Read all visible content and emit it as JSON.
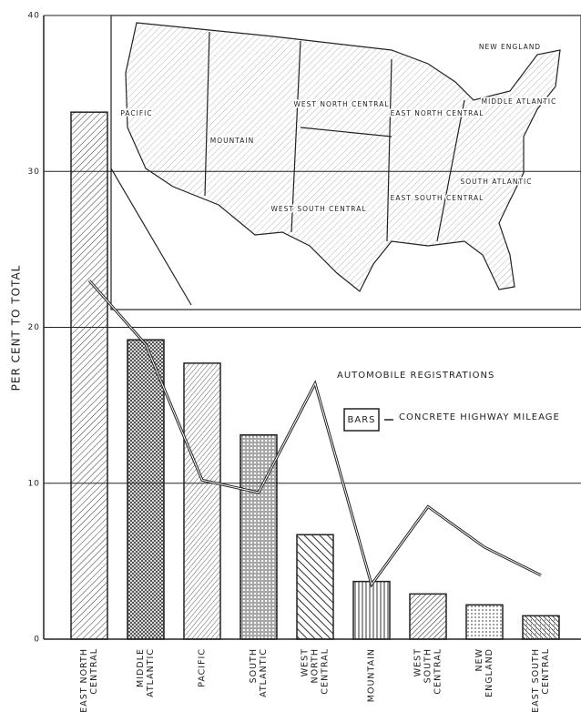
{
  "chart_data": {
    "type": "bar",
    "y_label": "PER CENT TO TOTAL",
    "categories": [
      "EAST NORTH CENTRAL",
      "MIDDLE ATLANTIC",
      "PACIFIC",
      "SOUTH ATLANTIC",
      "WEST NORTH CENTRAL",
      "MOUNTAIN",
      "WEST SOUTH CENTRAL",
      "NEW ENGLAND",
      "EAST SOUTH CENTRAL"
    ],
    "series": [
      {
        "name": "CONCRETE HIGHWAY MILEAGE",
        "type": "bar",
        "color": "#222",
        "values": [
          33.8,
          19.2,
          17.7,
          13.1,
          6.7,
          3.7,
          2.9,
          2.2,
          1.5
        ]
      },
      {
        "name": "AUTOMOBILE REGISTRATIONS",
        "type": "line",
        "color": "#222",
        "values": [
          23.0,
          18.9,
          10.2,
          9.4,
          16.4,
          3.5,
          8.5,
          5.9,
          4.1
        ]
      }
    ],
    "legend_key": "BARS",
    "ylim": [
      0,
      40
    ],
    "yticks": [
      0,
      10,
      20,
      30,
      40
    ],
    "grid": true,
    "map_labels": [
      "NEW ENGLAND",
      "PACIFIC",
      "MOUNTAIN",
      "WEST NORTH CENTRAL",
      "EAST NORTH CENTRAL",
      "MIDDLE ATLANTIC",
      "WEST SOUTH CENTRAL",
      "EAST SOUTH CENTRAL",
      "SOUTH ATLANTIC"
    ]
  }
}
